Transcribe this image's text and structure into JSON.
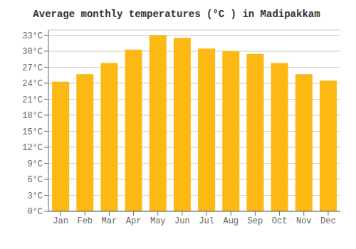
{
  "chart_data": {
    "type": "bar",
    "title": "Average monthly temperatures (°C ) in Madipakkam",
    "categories": [
      "Jan",
      "Feb",
      "Mar",
      "Apr",
      "May",
      "Jun",
      "Jul",
      "Aug",
      "Sep",
      "Oct",
      "Nov",
      "Dec"
    ],
    "values": [
      24.3,
      25.7,
      27.8,
      30.3,
      33.0,
      32.5,
      30.5,
      30.0,
      29.5,
      27.8,
      25.7,
      24.5
    ],
    "color": "#FDB913",
    "ylim": [
      0,
      34
    ],
    "yticks": [
      {
        "value": 0,
        "label": "0°C"
      },
      {
        "value": 3,
        "label": "3°C"
      },
      {
        "value": 6,
        "label": "6°C"
      },
      {
        "value": 9,
        "label": "9°C"
      },
      {
        "value": 12,
        "label": "12°C"
      },
      {
        "value": 15,
        "label": "15°C"
      },
      {
        "value": 18,
        "label": "18°C"
      },
      {
        "value": 21,
        "label": "21°C"
      },
      {
        "value": 24,
        "label": "24°C"
      },
      {
        "value": 27,
        "label": "27°C"
      },
      {
        "value": 30,
        "label": "30°C"
      },
      {
        "value": 33,
        "label": "33°C"
      }
    ],
    "grid": true
  }
}
